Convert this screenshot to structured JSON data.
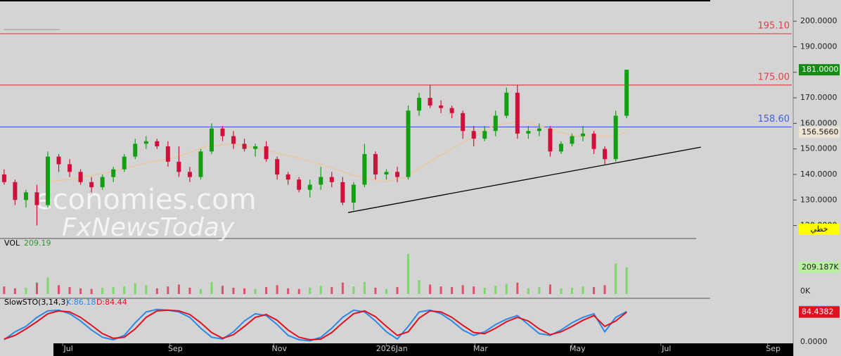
{
  "chart_data": {
    "type": "candlestick",
    "watermark": [
      "economies.com",
      "FxNewsToday"
    ],
    "style_label": "خطي",
    "xlim": [
      0,
      290
    ],
    "xticks": [
      {
        "value": 24.5,
        "label": "Jul"
      },
      {
        "value": 63.7,
        "label": "Sep"
      },
      {
        "value": 101.8,
        "label": "Nov"
      },
      {
        "value": 143,
        "label": "2026Jan"
      },
      {
        "value": 175.5,
        "label": "Mar"
      },
      {
        "value": 211,
        "label": "May"
      },
      {
        "value": 243.6,
        "label": "Jul"
      },
      {
        "value": 282.7,
        "label": "Sep"
      }
    ],
    "ylim": [
      115.2,
      208.3
    ],
    "yticks": [
      {
        "value": 120,
        "label": "120.0000"
      },
      {
        "value": 130,
        "label": "130.0000"
      },
      {
        "value": 140,
        "label": "140.0000"
      },
      {
        "value": 150,
        "label": "150.0000"
      },
      {
        "value": 160,
        "label": "160.0000"
      },
      {
        "value": 170,
        "label": "170.0000"
      },
      {
        "value": 180,
        "label": "180.0000"
      },
      {
        "value": 190,
        "label": "190.0000"
      },
      {
        "value": 200,
        "label": "200.0000"
      }
    ],
    "x": [
      1,
      5,
      9,
      13,
      17,
      21,
      25,
      29,
      33,
      37,
      41,
      45,
      49,
      53,
      57,
      61,
      65,
      69,
      73,
      77,
      81,
      85,
      89,
      93,
      97,
      101,
      105,
      109,
      113,
      117,
      121,
      125,
      129,
      133,
      137,
      141,
      145,
      149,
      153,
      157,
      161,
      165,
      169,
      173,
      177,
      181,
      185,
      189,
      193,
      197,
      201,
      205,
      209,
      213,
      217,
      221,
      225,
      229
    ],
    "open": [
      140,
      137,
      130,
      133,
      128,
      147,
      144,
      141,
      137,
      135,
      139,
      142,
      147,
      152,
      153,
      151,
      145,
      141,
      139,
      149,
      158,
      155,
      152,
      150,
      151,
      146,
      140,
      138,
      134,
      136,
      139,
      137,
      129,
      136,
      148,
      140,
      141,
      139,
      165,
      170,
      167,
      166,
      164,
      157,
      154,
      157,
      163,
      172,
      156,
      157,
      158,
      149,
      152,
      155,
      156,
      150,
      146,
      163
    ],
    "high": [
      142,
      138,
      134,
      136,
      149,
      148,
      146,
      142,
      139,
      140,
      143,
      148,
      154,
      155,
      154,
      153,
      151,
      143,
      150,
      160,
      159,
      157,
      154,
      152,
      153,
      147,
      141,
      139,
      138,
      143,
      141,
      139,
      137,
      152,
      149,
      142,
      143,
      167,
      172,
      175,
      169,
      167,
      165,
      159,
      159,
      165,
      174,
      175,
      159,
      160,
      159,
      153,
      156,
      159,
      157,
      151,
      165,
      181
    ],
    "low": [
      136,
      128,
      127,
      120,
      127,
      141,
      139,
      136,
      133,
      134,
      137,
      141,
      146,
      150,
      150,
      143,
      139,
      137,
      138,
      148,
      153,
      150,
      149,
      147,
      145,
      138,
      136,
      133,
      131,
      134,
      135,
      128,
      126,
      135,
      138,
      138,
      137,
      138,
      163,
      166,
      164,
      162,
      154,
      151,
      153,
      155,
      162,
      154,
      154,
      155,
      147,
      148,
      151,
      153,
      148,
      144,
      145,
      162
    ],
    "close": [
      137,
      130,
      133,
      128,
      147,
      144,
      141,
      137,
      135,
      139,
      142,
      147,
      152,
      153,
      151,
      145,
      141,
      139,
      149,
      158,
      155,
      152,
      150,
      151,
      146,
      140,
      138,
      134,
      136,
      139,
      137,
      129,
      136,
      148,
      140,
      141,
      139,
      165,
      170,
      167,
      166,
      164,
      157,
      154,
      157,
      163,
      172,
      156,
      157,
      158,
      149,
      152,
      155,
      156,
      150,
      146,
      163,
      181
    ],
    "up_color": "#12a012",
    "down_color": "#d0103a",
    "last_price": {
      "value": 181,
      "label": "181.0000"
    },
    "moving_average": {
      "color": "#e8c89a",
      "x": [
        15,
        25,
        40,
        55,
        65,
        75,
        85,
        95,
        110,
        120,
        128,
        140,
        148,
        160,
        170,
        180,
        190,
        200,
        210,
        218,
        225,
        229
      ],
      "values": [
        137,
        138,
        141,
        145,
        147,
        151,
        152,
        150,
        146,
        143,
        140,
        137,
        139,
        147,
        153,
        159,
        161,
        158,
        155,
        155,
        155,
        156.566
      ],
      "last_label": {
        "value": 156.566,
        "label": "156.5660"
      }
    },
    "levels": [
      {
        "value": 195.1,
        "label": "195.10",
        "color": "#e0404a"
      },
      {
        "value": 175,
        "label": "175.00",
        "color": "#e0404a"
      },
      {
        "value": 158.6,
        "label": "158.60",
        "color": "#4060e0"
      }
    ],
    "trendline": {
      "x": [
        127,
        256.2
      ],
      "values": [
        125.1,
        150.7
      ],
      "color": "#000000"
    },
    "volume": {
      "title": "VOL",
      "current": "209.19",
      "ylim": [
        0,
        430
      ],
      "yticks": [
        {
          "value": 0,
          "label": "0K"
        }
      ],
      "values": [
        60,
        45,
        50,
        90,
        130,
        70,
        55,
        45,
        40,
        50,
        55,
        60,
        85,
        70,
        45,
        60,
        75,
        50,
        40,
        95,
        65,
        50,
        45,
        40,
        55,
        70,
        45,
        40,
        50,
        65,
        55,
        90,
        60,
        95,
        50,
        40,
        55,
        315,
        110,
        75,
        60,
        55,
        70,
        60,
        50,
        65,
        80,
        90,
        45,
        55,
        75,
        45,
        50,
        60,
        55,
        70,
        240,
        209.187
      ],
      "last_label": {
        "value": 209.187,
        "label": "209.187K"
      }
    },
    "stochastic": {
      "title": "SlowSTO(3,14,3)",
      "k_text": "K:86.18",
      "d_text": "D:84.44",
      "ylim": [
        0,
        115
      ],
      "yticks": [
        {
          "value": 0,
          "label": "0.0000"
        }
      ],
      "series": [
        {
          "name": "K",
          "color": "#2a8ae8",
          "values": [
            8,
            30,
            45,
            70,
            88,
            90,
            80,
            60,
            35,
            15,
            8,
            20,
            55,
            85,
            92,
            90,
            85,
            70,
            40,
            15,
            10,
            30,
            60,
            80,
            75,
            50,
            20,
            8,
            5,
            15,
            40,
            70,
            90,
            85,
            60,
            30,
            10,
            45,
            85,
            90,
            80,
            60,
            35,
            20,
            30,
            50,
            65,
            75,
            50,
            25,
            20,
            35,
            55,
            70,
            80,
            30,
            70,
            86.18
          ],
          "last_label": {
            "value": 86.1842,
            "label": "86.1842"
          }
        },
        {
          "name": "D",
          "color": "#e01020",
          "values": [
            10,
            20,
            38,
            58,
            80,
            88,
            85,
            70,
            48,
            25,
            12,
            15,
            38,
            70,
            88,
            90,
            88,
            78,
            55,
            28,
            12,
            22,
            45,
            70,
            78,
            62,
            35,
            15,
            8,
            10,
            28,
            55,
            80,
            88,
            72,
            45,
            20,
            30,
            68,
            88,
            85,
            70,
            48,
            28,
            25,
            40,
            58,
            70,
            60,
            38,
            22,
            30,
            45,
            62,
            75,
            45,
            60,
            84.44
          ],
          "last_label": {
            "value": 84.4382,
            "label": "84.4382"
          }
        }
      ]
    }
  }
}
